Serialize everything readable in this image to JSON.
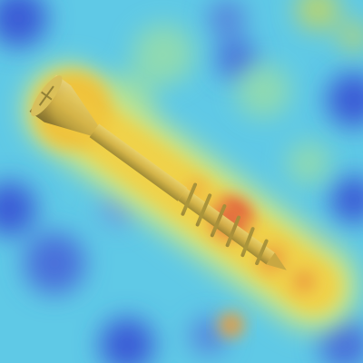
{
  "image": {
    "subject": "screw-with-attention-heatmap-overlay",
    "colors": {
      "heatmap_low": "#3b5bd6",
      "heatmap_mid": "#59d4e8",
      "heatmap_high": "#f6c23a",
      "heatmap_peak": "#e0503a",
      "screw_metal": "#c8a84a",
      "screw_shadow": "#7a6a2c"
    }
  }
}
